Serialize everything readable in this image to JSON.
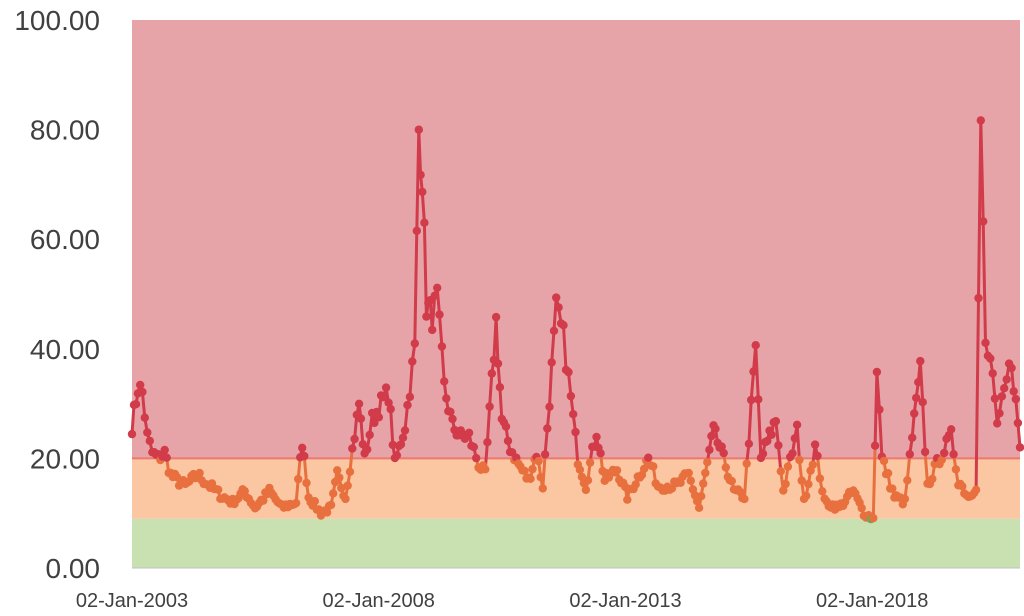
{
  "chart_data": {
    "type": "line",
    "title": "",
    "xlabel": "",
    "ylabel": "",
    "ylim": [
      0,
      100
    ],
    "xlim": [
      "2003-01-02",
      "2020-12-31"
    ],
    "y_ticks": [
      "0.00",
      "20.00",
      "40.00",
      "60.00",
      "80.00",
      "100.00"
    ],
    "x_ticks": [
      {
        "date": "2003-01-02",
        "label": "02-Jan-2003"
      },
      {
        "date": "2008-01-02",
        "label": "02-Jan-2008"
      },
      {
        "date": "2013-01-02",
        "label": "02-Jan-2013"
      },
      {
        "date": "2018-01-02",
        "label": "02-Jan-2018"
      }
    ],
    "grid": false,
    "legend": "none",
    "bands": [
      {
        "from": 0,
        "to": 9,
        "color": "#c9e0b1"
      },
      {
        "from": 9,
        "to": 20,
        "color": "#fbc7a2"
      },
      {
        "from": 20,
        "to": 100,
        "color": "#e6a4a9"
      }
    ],
    "colors": {
      "line_above_20": "#d13b4a",
      "line_between": "#e8703f",
      "line_below_9": "#6fa65a",
      "threshold_line": "#ee7870"
    },
    "series": [
      {
        "points": [
          [
            "2003-01-02",
            26
          ],
          [
            "2003-02-15",
            33
          ],
          [
            "2003-03-20",
            32
          ],
          [
            "2003-04-25",
            24
          ],
          [
            "2003-06-01",
            21
          ],
          [
            "2003-07-15",
            20
          ],
          [
            "2003-09-01",
            21
          ],
          [
            "2003-10-15",
            17
          ],
          [
            "2003-12-01",
            16
          ],
          [
            "2004-02-01",
            15
          ],
          [
            "2004-05-01",
            17
          ],
          [
            "2004-08-01",
            15
          ],
          [
            "2004-11-01",
            13
          ],
          [
            "2005-01-15",
            12
          ],
          [
            "2005-04-15",
            14
          ],
          [
            "2005-07-01",
            11
          ],
          [
            "2005-10-15",
            14
          ],
          [
            "2006-01-15",
            11
          ],
          [
            "2006-05-01",
            12
          ],
          [
            "2006-06-15",
            23
          ],
          [
            "2006-08-01",
            13
          ],
          [
            "2006-11-01",
            10
          ],
          [
            "2007-01-15",
            11
          ],
          [
            "2007-03-01",
            17
          ],
          [
            "2007-05-01",
            13
          ],
          [
            "2007-08-10",
            30
          ],
          [
            "2007-09-20",
            20
          ],
          [
            "2007-11-15",
            27
          ],
          [
            "2008-01-20",
            30
          ],
          [
            "2008-03-15",
            32
          ],
          [
            "2008-05-01",
            19
          ],
          [
            "2008-07-15",
            26
          ],
          [
            "2008-09-25",
            40
          ],
          [
            "2008-10-25",
            80
          ],
          [
            "2008-11-20",
            72
          ],
          [
            "2008-12-20",
            48
          ],
          [
            "2009-02-01",
            46
          ],
          [
            "2009-03-10",
            49
          ],
          [
            "2009-05-01",
            33
          ],
          [
            "2009-07-01",
            26
          ],
          [
            "2009-09-01",
            24
          ],
          [
            "2009-11-01",
            24
          ],
          [
            "2010-01-10",
            19
          ],
          [
            "2010-03-01",
            17
          ],
          [
            "2010-05-20",
            45
          ],
          [
            "2010-07-01",
            27
          ],
          [
            "2010-09-01",
            22
          ],
          [
            "2010-11-01",
            19
          ],
          [
            "2011-01-15",
            16
          ],
          [
            "2011-03-15",
            21
          ],
          [
            "2011-05-01",
            15
          ],
          [
            "2011-08-08",
            47
          ],
          [
            "2011-10-01",
            42
          ],
          [
            "2011-11-25",
            31
          ],
          [
            "2012-01-15",
            20
          ],
          [
            "2012-03-15",
            15
          ],
          [
            "2012-06-01",
            25
          ],
          [
            "2012-08-01",
            16
          ],
          [
            "2012-11-01",
            18
          ],
          [
            "2013-01-15",
            13
          ],
          [
            "2013-06-20",
            20
          ],
          [
            "2013-09-01",
            15
          ],
          [
            "2014-01-15",
            15
          ],
          [
            "2014-04-15",
            17
          ],
          [
            "2014-07-01",
            11
          ],
          [
            "2014-10-15",
            25
          ],
          [
            "2014-12-15",
            21
          ],
          [
            "2015-03-15",
            14
          ],
          [
            "2015-06-01",
            13
          ],
          [
            "2015-08-24",
            40
          ],
          [
            "2015-10-01",
            20
          ],
          [
            "2016-01-20",
            27
          ],
          [
            "2016-03-15",
            14
          ],
          [
            "2016-06-25",
            25
          ],
          [
            "2016-08-15",
            12
          ],
          [
            "2016-11-05",
            22
          ],
          [
            "2017-01-15",
            12
          ],
          [
            "2017-05-01",
            11
          ],
          [
            "2017-08-15",
            14
          ],
          [
            "2017-11-01",
            10
          ],
          [
            "2018-01-10",
            9
          ],
          [
            "2018-02-06",
            37
          ],
          [
            "2018-03-15",
            20
          ],
          [
            "2018-06-15",
            13
          ],
          [
            "2018-09-01",
            12
          ],
          [
            "2018-10-25",
            24
          ],
          [
            "2018-12-24",
            36
          ],
          [
            "2019-02-15",
            15
          ],
          [
            "2019-05-15",
            20
          ],
          [
            "2019-08-10",
            24
          ],
          [
            "2019-10-01",
            16
          ],
          [
            "2019-12-15",
            13
          ],
          [
            "2020-02-10",
            15
          ],
          [
            "2020-03-16",
            82
          ],
          [
            "2020-04-20",
            40
          ],
          [
            "2020-06-12",
            36
          ],
          [
            "2020-07-15",
            25
          ],
          [
            "2020-09-05",
            32
          ],
          [
            "2020-10-30",
            38
          ],
          [
            "2020-12-31",
            22
          ]
        ]
      }
    ]
  }
}
